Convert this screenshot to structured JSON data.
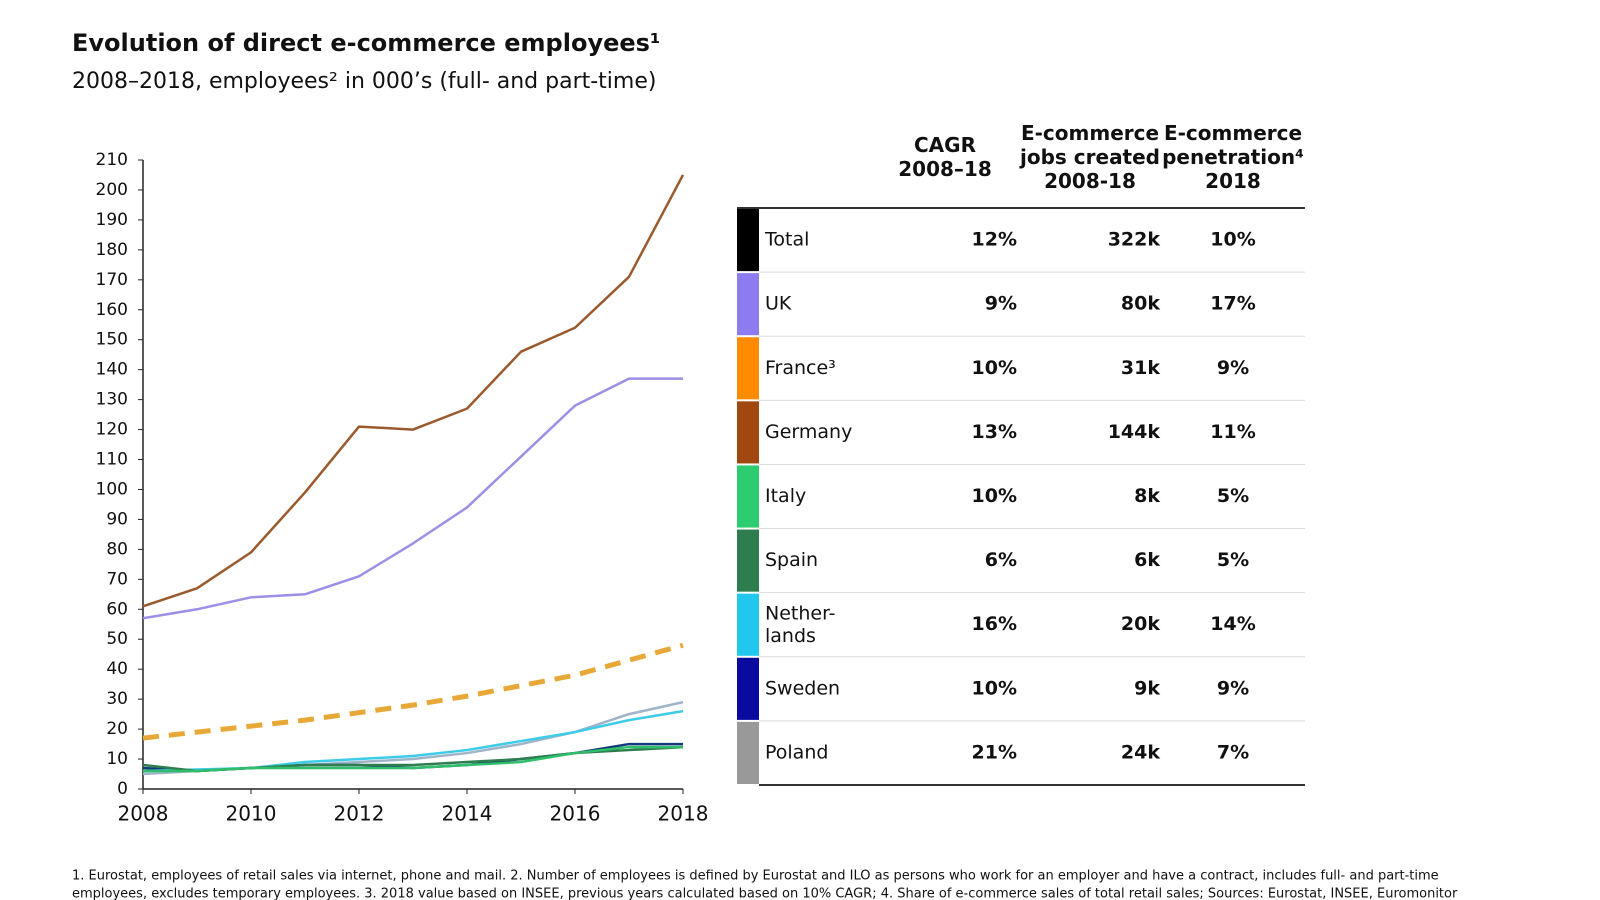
{
  "chart_data": {
    "type": "line",
    "title": "Evolution of direct e-commerce employees¹",
    "subtitle": "2008–2018, employees²  in 000’s (full- and part-time)",
    "x": [
      2008,
      2009,
      2010,
      2011,
      2012,
      2013,
      2014,
      2015,
      2016,
      2017,
      2018
    ],
    "xlim": [
      2008,
      2018
    ],
    "xticks": [
      2008,
      2010,
      2012,
      2014,
      2016,
      2018
    ],
    "ylim": [
      0,
      210
    ],
    "yticks": [
      0,
      10,
      20,
      30,
      40,
      50,
      60,
      70,
      80,
      90,
      100,
      110,
      120,
      130,
      140,
      150,
      160,
      170,
      180,
      190,
      200,
      210
    ],
    "grid": false,
    "table": {
      "headers": [
        "CAGR\n2008–18",
        "E-commerce\njobs created\n2008-18",
        "E-commerce\npenetration⁴\n2018"
      ],
      "total": {
        "name": "Total",
        "color": "#000000",
        "cagr": "12%",
        "jobs": "322k",
        "penetration": "10%"
      }
    },
    "series": [
      {
        "name": "UK",
        "color": "#8c7cf0",
        "line_color": "#9d8fe6",
        "dashed": false,
        "cagr": "9%",
        "jobs": "80k",
        "penetration": "17%",
        "values": [
          57,
          60,
          64,
          65,
          71,
          82,
          94,
          111,
          128,
          137,
          137
        ]
      },
      {
        "name": "France³",
        "color": "#ff8c00",
        "line_color": "#e8a838",
        "dashed": true,
        "cagr": "10%",
        "jobs": "31k",
        "penetration": "9%",
        "values": [
          17,
          19,
          21,
          23,
          25.5,
          28,
          31,
          34.5,
          38,
          43,
          48
        ]
      },
      {
        "name": "Germany",
        "color": "#a0480f",
        "line_color": "#9b5a2e",
        "dashed": false,
        "cagr": "13%",
        "jobs": "144k",
        "penetration": "11%",
        "values": [
          61,
          67,
          79,
          99,
          121,
          120,
          127,
          146,
          154,
          171,
          205
        ]
      },
      {
        "name": "Italy",
        "color": "#2ecc71",
        "line_color": "#2fbf6a",
        "dashed": false,
        "cagr": "10%",
        "jobs": "8k",
        "penetration": "5%",
        "values": [
          6,
          6,
          7,
          7,
          7,
          7,
          8,
          9,
          12,
          14,
          14
        ]
      },
      {
        "name": "Spain",
        "color": "#2e7d4f",
        "line_color": "#2e7d4f",
        "dashed": false,
        "cagr": "6%",
        "jobs": "6k",
        "penetration": "5%",
        "values": [
          8,
          6,
          7,
          8,
          8,
          8,
          9,
          10,
          12,
          13,
          14
        ]
      },
      {
        "name": "Nether-\nlands",
        "color": "#22c7ee",
        "line_color": "#3ccbe8",
        "dashed": false,
        "cagr": "16%",
        "jobs": "20k",
        "penetration": "14%",
        "values": [
          6,
          6.5,
          7,
          9,
          10,
          11,
          13,
          16,
          19,
          23,
          26
        ]
      },
      {
        "name": "Sweden",
        "color": "#0a0a9e",
        "line_color": "#123a7a",
        "dashed": false,
        "cagr": "10%",
        "jobs": "9k",
        "penetration": "9%",
        "values": [
          7,
          6,
          7,
          8,
          8,
          7,
          8,
          10,
          12,
          15,
          15
        ]
      },
      {
        "name": "Poland",
        "color": "#999999",
        "line_color": "#9fb4c8",
        "dashed": false,
        "cagr": "21%",
        "jobs": "24k",
        "penetration": "7%",
        "values": [
          5,
          6,
          7,
          8,
          9,
          10,
          12,
          15,
          19,
          25,
          29
        ]
      }
    ],
    "footnotes": [
      "1. Eurostat, employees of retail sales via internet, phone and mail. 2. Number of employees is defined by Eurostat and ILO as persons who work for an employer and have a contract, includes full- and part-time",
      "employees, excludes temporary employees. 3. 2018 value based on INSEE, previous years calculated based on 10% CAGR; 4. Share of e-commerce sales of total retail sales; Sources: Eurostat, INSEE, Euromonitor"
    ]
  }
}
